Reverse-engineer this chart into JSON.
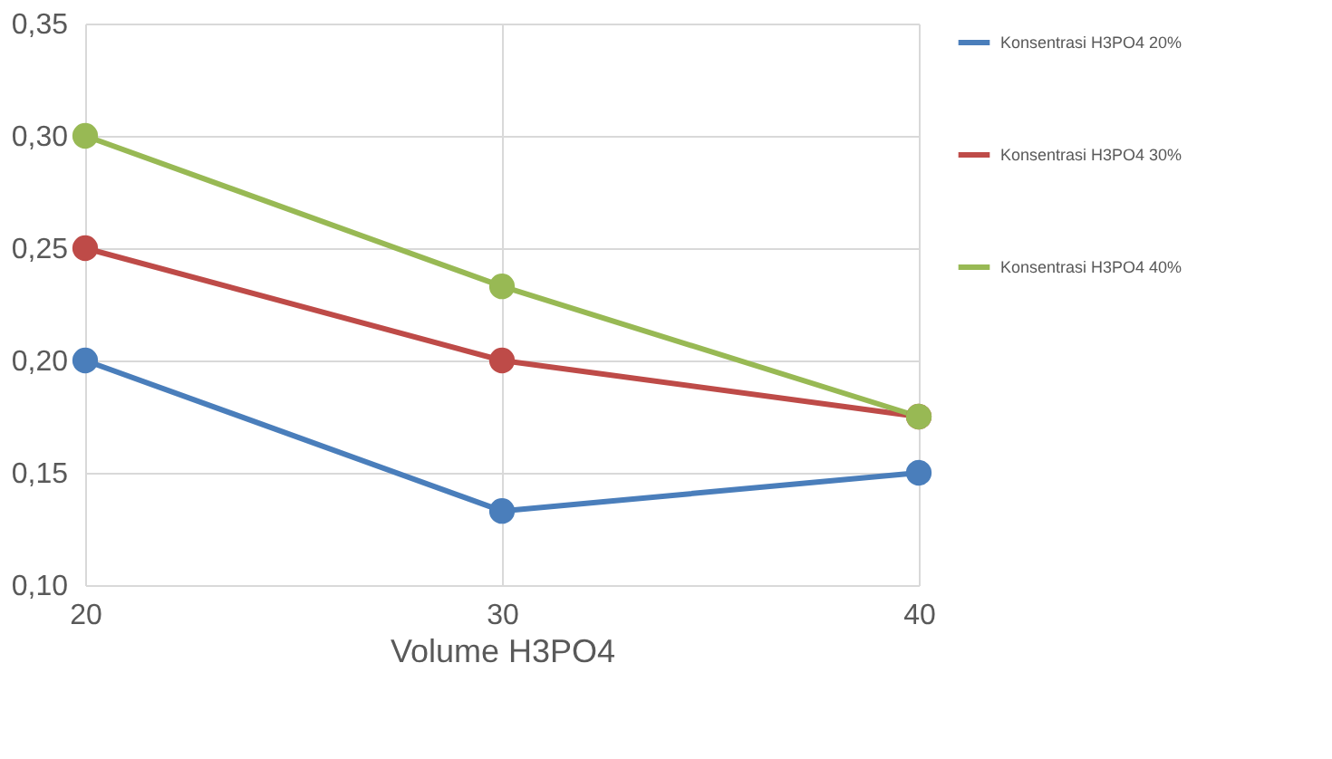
{
  "chart_data": {
    "type": "line",
    "xlabel": "Volume H3PO4",
    "x": [
      20,
      30,
      40
    ],
    "series": [
      {
        "name": "Konsentrasi H3PO4 20%",
        "color": "#4a7ebb",
        "values": [
          0.2,
          0.133,
          0.15
        ]
      },
      {
        "name": "Konsentrasi H3PO4 30%",
        "color": "#be4b48",
        "values": [
          0.25,
          0.2,
          0.175
        ]
      },
      {
        "name": "Konsentrasi H3PO4 40%",
        "color": "#98b954",
        "values": [
          0.3,
          0.233,
          0.175
        ]
      }
    ],
    "xlim": [
      20,
      40
    ],
    "xticks": [
      20,
      30,
      40
    ],
    "ylim": [
      0.1,
      0.35
    ],
    "yticks": [
      {
        "value": 0.1,
        "label": "0,10"
      },
      {
        "value": 0.15,
        "label": "0,15"
      },
      {
        "value": 0.2,
        "label": "0,20"
      },
      {
        "value": 0.25,
        "label": "0,25"
      },
      {
        "value": 0.3,
        "label": "0,30"
      },
      {
        "value": 0.35,
        "label": "0,35"
      }
    ],
    "grid": true,
    "legend": "right",
    "marker": "circle",
    "line_style": "solid"
  }
}
